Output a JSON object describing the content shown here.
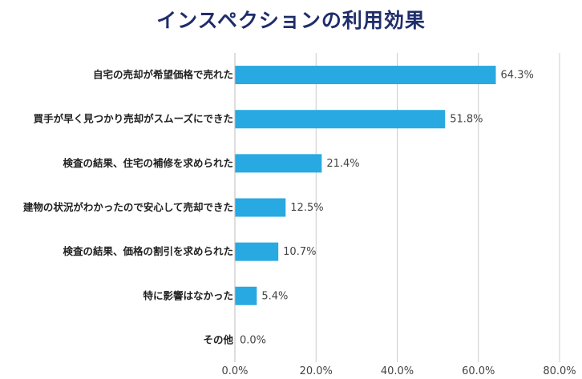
{
  "chart_data": {
    "type": "bar",
    "orientation": "horizontal",
    "title": "インスペクションの利用効果",
    "categories": [
      "自宅の売却が希望価格で売れた",
      "買手が早く見つかり売却がスムーズにできた",
      "検査の結果、住宅の補修を求められた",
      "建物の状況がわかったので安心して売却できた",
      "検査の結果、価格の割引を求められた",
      "特に影響はなかった",
      "その他"
    ],
    "values": [
      64.3,
      51.8,
      21.4,
      12.5,
      10.7,
      5.4,
      0.0
    ],
    "value_labels": [
      "64.3%",
      "51.8%",
      "21.4%",
      "12.5%",
      "10.7%",
      "5.4%",
      "0.0%"
    ],
    "xlim": [
      0,
      80
    ],
    "xticks": [
      0,
      20,
      40,
      60,
      80
    ],
    "xtick_labels": [
      "0.0%",
      "20.0%",
      "40.0%",
      "60.0%",
      "80.0%"
    ],
    "grid": "vertical",
    "bar_color": "#29a9e1"
  }
}
